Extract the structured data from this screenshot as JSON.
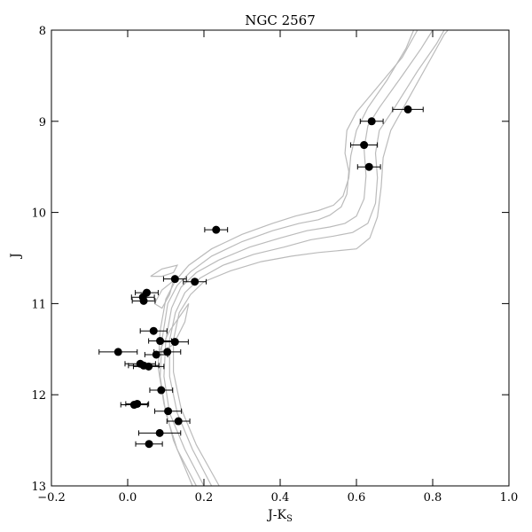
{
  "chart_data": {
    "type": "scatter",
    "title": "NGC 2567",
    "xlabel": "J-K",
    "xlabel_sub": "S",
    "ylabel": "J",
    "xlim": [
      -0.2,
      1.0
    ],
    "ylim": [
      13,
      8
    ],
    "y_inverted": true,
    "x_ticks": [
      -0.2,
      0.0,
      0.2,
      0.4,
      0.6,
      0.8,
      1.0
    ],
    "x_tick_labels": [
      "−0.2",
      "0.0",
      "0.2",
      "0.4",
      "0.6",
      "0.8",
      "1.0"
    ],
    "y_ticks": [
      8,
      9,
      10,
      11,
      12,
      13
    ],
    "y_tick_labels": [
      "8",
      "9",
      "10",
      "11",
      "12",
      "13"
    ],
    "grid": false,
    "colors": {
      "points": "#000000",
      "isochrones": "#bbbbbb"
    },
    "points": [
      {
        "x": 0.735,
        "y": 8.87,
        "xerr": 0.04
      },
      {
        "x": 0.64,
        "y": 9.0,
        "xerr": 0.03
      },
      {
        "x": 0.62,
        "y": 9.26,
        "xerr": 0.035
      },
      {
        "x": 0.633,
        "y": 9.5,
        "xerr": 0.03
      },
      {
        "x": 0.232,
        "y": 10.19,
        "xerr": 0.03
      },
      {
        "x": 0.124,
        "y": 10.73,
        "xerr": 0.03
      },
      {
        "x": 0.176,
        "y": 10.76,
        "xerr": 0.03
      },
      {
        "x": 0.05,
        "y": 10.88,
        "xerr": 0.03
      },
      {
        "x": 0.04,
        "y": 10.93,
        "xerr": 0.03
      },
      {
        "x": 0.042,
        "y": 10.97,
        "xerr": 0.03
      },
      {
        "x": 0.068,
        "y": 11.3,
        "xerr": 0.035
      },
      {
        "x": 0.085,
        "y": 11.41,
        "xerr": 0.03
      },
      {
        "x": 0.124,
        "y": 11.42,
        "xerr": 0.035
      },
      {
        "x": -0.025,
        "y": 11.53,
        "xerr": 0.05
      },
      {
        "x": 0.104,
        "y": 11.53,
        "xerr": 0.035
      },
      {
        "x": 0.075,
        "y": 11.56,
        "xerr": 0.03
      },
      {
        "x": 0.033,
        "y": 11.66,
        "xerr": 0.04
      },
      {
        "x": 0.042,
        "y": 11.68,
        "xerr": 0.04
      },
      {
        "x": 0.055,
        "y": 11.69,
        "xerr": 0.04
      },
      {
        "x": 0.088,
        "y": 11.95,
        "xerr": 0.03
      },
      {
        "x": 0.017,
        "y": 12.11,
        "xerr": 0.035
      },
      {
        "x": 0.025,
        "y": 12.1,
        "xerr": 0.03
      },
      {
        "x": 0.106,
        "y": 12.18,
        "xerr": 0.035
      },
      {
        "x": 0.133,
        "y": 12.29,
        "xerr": 0.03
      },
      {
        "x": 0.084,
        "y": 12.42,
        "xerr": 0.055
      },
      {
        "x": 0.056,
        "y": 12.54,
        "xerr": 0.035
      }
    ],
    "isochrones": [
      [
        [
          0.18,
          13.0
        ],
        [
          0.13,
          12.6
        ],
        [
          0.1,
          12.2
        ],
        [
          0.085,
          11.8
        ],
        [
          0.09,
          11.4
        ],
        [
          0.105,
          11.0
        ],
        [
          0.13,
          10.8
        ],
        [
          0.165,
          10.65
        ],
        [
          0.22,
          10.48
        ],
        [
          0.3,
          10.32
        ],
        [
          0.38,
          10.2
        ],
        [
          0.45,
          10.12
        ],
        [
          0.5,
          10.08
        ],
        [
          0.53,
          10.03
        ],
        [
          0.56,
          9.94
        ],
        [
          0.575,
          9.8
        ],
        [
          0.58,
          9.55
        ],
        [
          0.57,
          9.35
        ],
        [
          0.575,
          9.1
        ],
        [
          0.6,
          8.9
        ],
        [
          0.66,
          8.6
        ],
        [
          0.72,
          8.3
        ],
        [
          0.76,
          8.0
        ]
      ],
      [
        [
          0.2,
          13.0
        ],
        [
          0.15,
          12.6
        ],
        [
          0.11,
          12.2
        ],
        [
          0.095,
          11.8
        ],
        [
          0.1,
          11.4
        ],
        [
          0.115,
          11.05
        ],
        [
          0.14,
          10.82
        ],
        [
          0.18,
          10.66
        ],
        [
          0.24,
          10.52
        ],
        [
          0.32,
          10.38
        ],
        [
          0.4,
          10.28
        ],
        [
          0.47,
          10.2
        ],
        [
          0.53,
          10.16
        ],
        [
          0.57,
          10.12
        ],
        [
          0.6,
          10.04
        ],
        [
          0.62,
          9.85
        ],
        [
          0.625,
          9.6
        ],
        [
          0.62,
          9.3
        ],
        [
          0.63,
          9.05
        ],
        [
          0.66,
          8.85
        ],
        [
          0.72,
          8.5
        ],
        [
          0.77,
          8.2
        ],
        [
          0.8,
          8.0
        ]
      ],
      [
        [
          0.22,
          13.0
        ],
        [
          0.17,
          12.6
        ],
        [
          0.13,
          12.2
        ],
        [
          0.11,
          11.8
        ],
        [
          0.11,
          11.4
        ],
        [
          0.125,
          11.1
        ],
        [
          0.15,
          10.88
        ],
        [
          0.19,
          10.72
        ],
        [
          0.25,
          10.58
        ],
        [
          0.33,
          10.46
        ],
        [
          0.41,
          10.38
        ],
        [
          0.48,
          10.3
        ],
        [
          0.54,
          10.26
        ],
        [
          0.59,
          10.22
        ],
        [
          0.63,
          10.12
        ],
        [
          0.65,
          9.9
        ],
        [
          0.655,
          9.62
        ],
        [
          0.65,
          9.35
        ],
        [
          0.66,
          9.1
        ],
        [
          0.7,
          8.85
        ],
        [
          0.76,
          8.45
        ],
        [
          0.81,
          8.15
        ],
        [
          0.83,
          8.0
        ]
      ],
      [
        [
          0.17,
          13.0
        ],
        [
          0.12,
          12.5
        ],
        [
          0.095,
          12.1
        ],
        [
          0.08,
          11.7
        ],
        [
          0.085,
          11.3
        ],
        [
          0.1,
          10.95
        ],
        [
          0.125,
          10.75
        ],
        [
          0.16,
          10.58
        ],
        [
          0.22,
          10.4
        ],
        [
          0.3,
          10.24
        ],
        [
          0.38,
          10.12
        ],
        [
          0.44,
          10.04
        ],
        [
          0.5,
          9.98
        ],
        [
          0.54,
          9.92
        ],
        [
          0.565,
          9.82
        ],
        [
          0.58,
          9.62
        ],
        [
          0.585,
          9.38
        ],
        [
          0.6,
          9.1
        ],
        [
          0.63,
          8.85
        ],
        [
          0.68,
          8.55
        ],
        [
          0.73,
          8.2
        ],
        [
          0.75,
          8.0
        ]
      ],
      [
        [
          0.24,
          13.0
        ],
        [
          0.18,
          12.55
        ],
        [
          0.14,
          12.15
        ],
        [
          0.12,
          11.75
        ],
        [
          0.12,
          11.4
        ],
        [
          0.135,
          11.1
        ],
        [
          0.165,
          10.9
        ],
        [
          0.2,
          10.76
        ],
        [
          0.27,
          10.64
        ],
        [
          0.35,
          10.54
        ],
        [
          0.43,
          10.48
        ],
        [
          0.5,
          10.44
        ],
        [
          0.55,
          10.42
        ],
        [
          0.6,
          10.4
        ],
        [
          0.635,
          10.28
        ],
        [
          0.655,
          10.05
        ],
        [
          0.665,
          9.72
        ],
        [
          0.67,
          9.4
        ],
        [
          0.69,
          9.1
        ],
        [
          0.73,
          8.8
        ],
        [
          0.79,
          8.35
        ],
        [
          0.83,
          8.05
        ],
        [
          0.84,
          8.0
        ]
      ]
    ],
    "isochrone_loops": [
      [
        [
          0.06,
          10.7
        ],
        [
          0.09,
          10.62
        ],
        [
          0.13,
          10.58
        ],
        [
          0.12,
          10.66
        ],
        [
          0.09,
          10.7
        ],
        [
          0.06,
          10.7
        ]
      ],
      [
        [
          0.07,
          11.0
        ],
        [
          0.09,
          10.85
        ],
        [
          0.12,
          10.75
        ],
        [
          0.11,
          10.9
        ],
        [
          0.09,
          11.05
        ],
        [
          0.07,
          11.0
        ]
      ],
      [
        [
          0.08,
          11.55
        ],
        [
          0.11,
          11.3
        ],
        [
          0.16,
          11.0
        ],
        [
          0.15,
          11.2
        ],
        [
          0.12,
          11.45
        ],
        [
          0.08,
          11.55
        ]
      ]
    ]
  }
}
